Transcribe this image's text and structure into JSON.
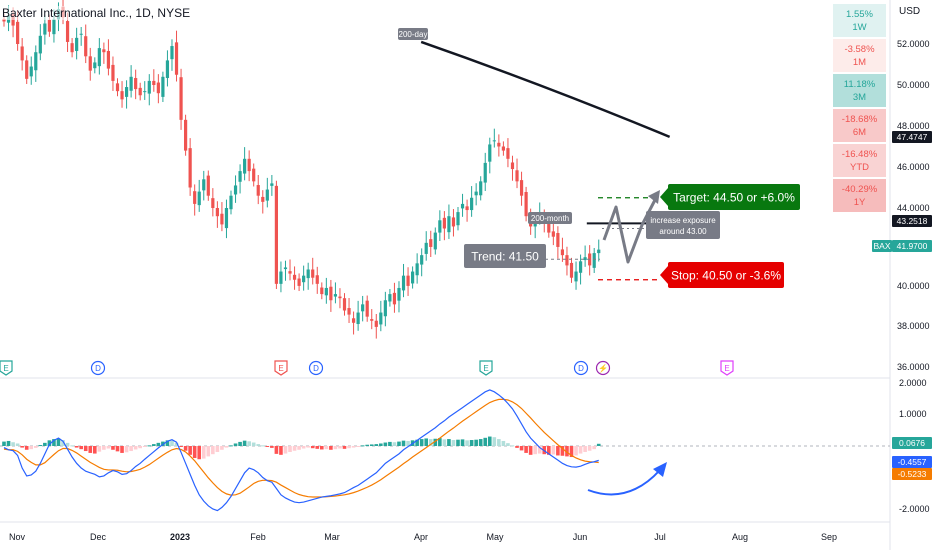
{
  "header": {
    "title": "Baxter International Inc., 1D, NYSE",
    "currency": "USD"
  },
  "performance": [
    {
      "pct": "1.55%",
      "period": "1W",
      "color": "#26a69a",
      "bg": "#e0f2f1"
    },
    {
      "pct": "-3.58%",
      "period": "1M",
      "color": "#ef5350",
      "bg": "#fdecea"
    },
    {
      "pct": "11.18%",
      "period": "3M",
      "color": "#26a69a",
      "bg": "#b2dfdb"
    },
    {
      "pct": "-18.68%",
      "period": "6M",
      "color": "#ef5350",
      "bg": "#f8c9c9"
    },
    {
      "pct": "-16.48%",
      "period": "YTD",
      "color": "#ef5350",
      "bg": "#f9d3d3"
    },
    {
      "pct": "-40.29%",
      "period": "1Y",
      "color": "#ef5350",
      "bg": "#f6bcbc"
    }
  ],
  "price_axis": {
    "ticks": [
      "52.0000",
      "50.0000",
      "48.0000",
      "46.0000",
      "44.0000",
      "40.0000",
      "38.0000",
      "36.0000"
    ],
    "badges": [
      {
        "text": "47.4747",
        "bg": "#131722",
        "fg": "#ffffff",
        "value": 47.4747
      },
      {
        "text": "43.2518",
        "bg": "#131722",
        "fg": "#ffffff",
        "value": 43.2518
      },
      {
        "text": "BAX",
        "bg": "#26a69a",
        "fg": "#ffffff",
        "value": 41.97
      },
      {
        "text": "41.9700",
        "bg": "#26a69a",
        "fg": "#ffffff",
        "value": 41.97
      }
    ]
  },
  "macd_axis": {
    "ticks": [
      "2.0000",
      "1.0000",
      "-2.0000"
    ],
    "badges": [
      {
        "text": "0.0676",
        "bg": "#26a69a",
        "fg": "#ffffff"
      },
      {
        "text": "-0.4557",
        "bg": "#2962ff",
        "fg": "#ffffff"
      },
      {
        "text": "-0.5233",
        "bg": "#f57c00",
        "fg": "#ffffff"
      }
    ]
  },
  "time_axis": [
    "Nov",
    "Dec",
    "2023",
    "Feb",
    "Mar",
    "Apr",
    "May",
    "Jun",
    "Jul",
    "Aug",
    "Sep"
  ],
  "annotations": {
    "ma200_day": "200-day",
    "ma200_month": "200-month",
    "target": "Target: 44.50 or +6.0%",
    "stop": "Stop: 40.50 or -3.6%",
    "trend": "Trend: 41.50",
    "increase_line1": "increase exposure",
    "increase_line2": "around 43.00"
  },
  "event_markers": [
    "E",
    "D",
    "E",
    "D",
    "E",
    "D",
    "⚡",
    "E"
  ],
  "colors": {
    "up": "#26a69a",
    "down": "#ef5350",
    "ma": "#131722",
    "macd": "#2962ff",
    "signal": "#f57c00",
    "target": "#08780f",
    "stop": "#e50000",
    "trend": "#787b86"
  },
  "chart_data": {
    "type": "candlestick",
    "title": "Baxter International Inc., 1D, NYSE",
    "ylim": [
      36,
      53
    ],
    "x_range": [
      "2022-11-01",
      "2023-09-05"
    ],
    "closes": [
      53.1,
      53.4,
      52.9,
      52.0,
      51.2,
      50.3,
      50.9,
      51.6,
      52.4,
      53.0,
      52.6,
      53.2,
      53.7,
      53.3,
      52.1,
      51.6,
      52.3,
      52.5,
      51.4,
      50.7,
      51.1,
      51.8,
      51.6,
      50.8,
      50.2,
      49.7,
      49.3,
      49.9,
      50.4,
      49.8,
      49.5,
      49.7,
      50.2,
      50.0,
      49.6,
      50.4,
      51.2,
      51.9,
      50.5,
      48.3,
      46.8,
      45.0,
      44.2,
      44.8,
      45.4,
      44.6,
      44.0,
      43.6,
      43.2,
      44.0,
      44.6,
      45.1,
      45.8,
      46.4,
      45.8,
      45.3,
      44.6,
      44.3,
      44.9,
      45.2,
      40.3,
      40.9,
      41.1,
      40.8,
      40.5,
      40.2,
      40.7,
      41.0,
      40.6,
      40.3,
      39.8,
      40.1,
      39.5,
      39.8,
      39.6,
      39.0,
      38.8,
      38.4,
      38.9,
      39.3,
      38.7,
      38.5,
      38.2,
      38.9,
      39.5,
      39.8,
      39.3,
      40.1,
      40.7,
      40.2,
      40.9,
      41.3,
      41.7,
      42.3,
      42.1,
      42.8,
      43.4,
      43.0,
      43.6,
      43.1,
      43.8,
      44.2,
      43.9,
      44.5,
      44.8,
      45.3,
      46.2,
      47.1,
      47.3,
      47.0,
      46.8,
      46.4,
      45.9,
      45.3,
      44.6,
      43.6,
      43.1,
      43.4,
      43.7,
      43.3,
      42.8,
      42.6,
      42.1,
      41.7,
      41.2,
      40.6,
      40.9,
      41.4,
      41.6,
      41.2,
      41.8,
      41.97
    ],
    "series": [
      {
        "name": "200-day",
        "x": [
          "2023-03-20",
          "2023-06-12"
        ],
        "y": [
          52.1,
          47.47
        ]
      },
      {
        "name": "200-month",
        "x": [
          "2023-05-15",
          "2023-06-12"
        ],
        "y": [
          43.25,
          43.25
        ]
      }
    ],
    "levels": {
      "target": 44.5,
      "stop": 40.5,
      "trend": 41.5,
      "increase": 43.0
    },
    "macd": {
      "ylim": [
        -2.0,
        2.0
      ],
      "histogram": [
        0.14,
        0.16,
        0.12,
        0.08,
        -0.05,
        -0.12,
        -0.1,
        -0.06,
        0.03,
        0.1,
        0.18,
        0.22,
        0.24,
        0.19,
        0.1,
        0.02,
        -0.05,
        -0.1,
        -0.16,
        -0.22,
        -0.24,
        -0.18,
        -0.12,
        -0.08,
        -0.12,
        -0.17,
        -0.22,
        -0.2,
        -0.16,
        -0.11,
        -0.07,
        -0.03,
        0.02,
        0.06,
        0.1,
        0.14,
        0.18,
        0.17,
        0.1,
        -0.02,
        -0.15,
        -0.28,
        -0.38,
        -0.42,
        -0.4,
        -0.33,
        -0.26,
        -0.19,
        -0.12,
        -0.05,
        0.02,
        0.08,
        0.13,
        0.17,
        0.15,
        0.11,
        0.06,
        0.02,
        -0.02,
        -0.06,
        -0.25,
        -0.28,
        -0.24,
        -0.19,
        -0.15,
        -0.12,
        -0.08,
        -0.05,
        -0.07,
        -0.09,
        -0.11,
        -0.1,
        -0.12,
        -0.1,
        -0.08,
        -0.09,
        -0.07,
        -0.05,
        -0.03,
        0.02,
        0.04,
        0.05,
        0.06,
        0.08,
        0.11,
        0.13,
        0.12,
        0.14,
        0.17,
        0.16,
        0.18,
        0.2,
        0.22,
        0.24,
        0.22,
        0.23,
        0.25,
        0.21,
        0.22,
        0.19,
        0.2,
        0.21,
        0.18,
        0.19,
        0.2,
        0.22,
        0.26,
        0.3,
        0.28,
        0.22,
        0.16,
        0.09,
        0.02,
        -0.06,
        -0.14,
        -0.22,
        -0.28,
        -0.26,
        -0.24,
        -0.26,
        -0.28,
        -0.27,
        -0.3,
        -0.31,
        -0.33,
        -0.35,
        -0.3,
        -0.24,
        -0.19,
        -0.15,
        -0.1,
        0.07
      ],
      "macd": [
        -0.05,
        -0.12,
        -0.15,
        -0.3,
        -0.7,
        -0.95,
        -0.92,
        -0.8,
        -0.55,
        -0.25,
        0.05,
        0.18,
        0.25,
        0.15,
        -0.1,
        -0.35,
        -0.55,
        -0.7,
        -0.8,
        -0.85,
        -0.9,
        -0.98,
        -0.95,
        -0.85,
        -0.78,
        -0.82,
        -0.9,
        -0.88,
        -0.78,
        -0.65,
        -0.55,
        -0.42,
        -0.3,
        -0.18,
        -0.06,
        0.05,
        0.15,
        0.2,
        0.12,
        -0.2,
        -0.55,
        -0.9,
        -1.25,
        -1.55,
        -1.75,
        -1.9,
        -2.0,
        -2.05,
        -1.95,
        -1.8,
        -1.6,
        -1.35,
        -1.1,
        -0.85,
        -0.7,
        -0.75,
        -0.85,
        -1.0,
        -1.1,
        -1.15,
        -1.35,
        -1.55,
        -1.65,
        -1.72,
        -1.78,
        -1.8,
        -1.78,
        -1.74,
        -1.7,
        -1.66,
        -1.62,
        -1.6,
        -1.58,
        -1.55,
        -1.52,
        -1.48,
        -1.4,
        -1.32,
        -1.25,
        -1.15,
        -1.05,
        -0.95,
        -0.85,
        -0.7,
        -0.55,
        -0.45,
        -0.35,
        -0.25,
        -0.12,
        -0.02,
        0.08,
        0.18,
        0.28,
        0.38,
        0.48,
        0.58,
        0.7,
        0.8,
        0.92,
        1.02,
        1.12,
        1.22,
        1.32,
        1.42,
        1.52,
        1.62,
        1.72,
        1.78,
        1.72,
        1.62,
        1.5,
        1.35,
        1.18,
        0.95,
        0.7,
        0.45,
        0.25,
        0.1,
        -0.05,
        -0.15,
        -0.25,
        -0.35,
        -0.45,
        -0.55,
        -0.62,
        -0.66,
        -0.67,
        -0.64,
        -0.58,
        -0.53,
        -0.5,
        -0.456
      ],
      "signal": [
        -0.1,
        -0.12,
        -0.12,
        -0.17,
        -0.28,
        -0.42,
        -0.52,
        -0.6,
        -0.6,
        -0.53,
        -0.4,
        -0.27,
        -0.15,
        -0.08,
        -0.08,
        -0.14,
        -0.22,
        -0.32,
        -0.42,
        -0.52,
        -0.6,
        -0.68,
        -0.74,
        -0.76,
        -0.76,
        -0.77,
        -0.8,
        -0.82,
        -0.81,
        -0.78,
        -0.74,
        -0.67,
        -0.59,
        -0.49,
        -0.39,
        -0.29,
        -0.2,
        -0.12,
        -0.08,
        -0.11,
        -0.19,
        -0.32,
        -0.47,
        -0.65,
        -0.83,
        -1.01,
        -1.17,
        -1.32,
        -1.44,
        -1.52,
        -1.56,
        -1.55,
        -1.5,
        -1.4,
        -1.3,
        -1.19,
        -1.12,
        -1.09,
        -1.09,
        -1.1,
        -1.15,
        -1.24,
        -1.32,
        -1.4,
        -1.48,
        -1.54,
        -1.58,
        -1.61,
        -1.62,
        -1.62,
        -1.62,
        -1.61,
        -1.6,
        -1.59,
        -1.57,
        -1.55,
        -1.52,
        -1.48,
        -1.43,
        -1.37,
        -1.31,
        -1.24,
        -1.16,
        -1.07,
        -0.97,
        -0.87,
        -0.77,
        -0.67,
        -0.56,
        -0.46,
        -0.35,
        -0.25,
        -0.15,
        -0.05,
        0.05,
        0.15,
        0.25,
        0.36,
        0.47,
        0.57,
        0.68,
        0.79,
        0.89,
        0.99,
        1.09,
        1.19,
        1.29,
        1.38,
        1.44,
        1.48,
        1.48,
        1.46,
        1.4,
        1.31,
        1.19,
        1.04,
        0.89,
        0.73,
        0.58,
        0.43,
        0.3,
        0.17,
        0.04,
        -0.08,
        -0.2,
        -0.3,
        -0.38,
        -0.44,
        -0.48,
        -0.5,
        -0.51,
        -0.523
      ]
    }
  }
}
